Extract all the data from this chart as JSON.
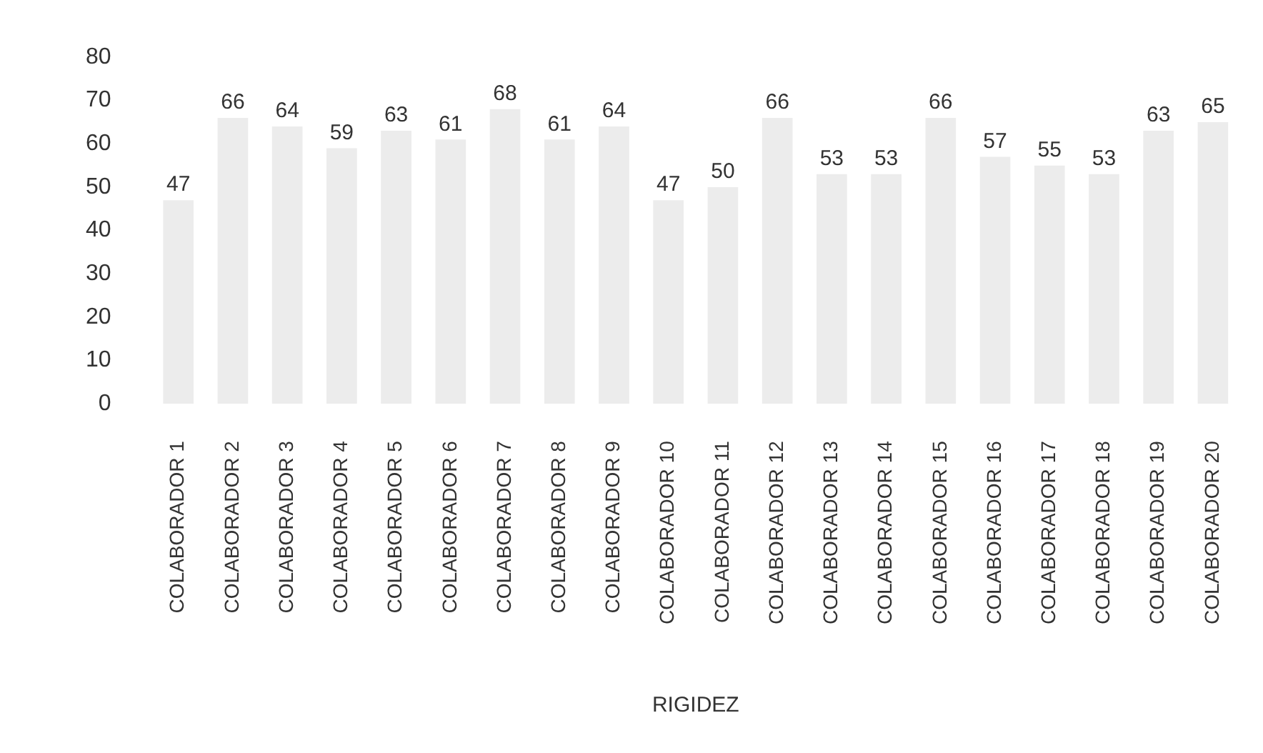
{
  "chart_data": {
    "type": "bar",
    "xlabel": "RIGIDEZ",
    "categories": [
      "COLABORADOR 1",
      "COLABORADOR 2",
      "COLABORADOR 3",
      "COLABORADOR 4",
      "COLABORADOR 5",
      "COLABORADOR 6",
      "COLABORADOR 7",
      "COLABORADOR 8",
      "COLABORADOR 9",
      "COLABORADOR 10",
      "COLABORADOR 11",
      "COLABORADOR 12",
      "COLABORADOR 13",
      "COLABORADOR 14",
      "COLABORADOR 15",
      "COLABORADOR 16",
      "COLABORADOR 17",
      "COLABORADOR 18",
      "COLABORADOR 19",
      "COLABORADOR 20"
    ],
    "values": [
      47,
      66,
      64,
      59,
      63,
      61,
      68,
      61,
      64,
      47,
      50,
      66,
      53,
      53,
      66,
      57,
      55,
      53,
      63,
      65
    ],
    "color": "#ececec",
    "ylim": [
      0,
      80
    ],
    "yticks": [
      0,
      10,
      20,
      30,
      40,
      50,
      60,
      70,
      80
    ],
    "grid": false,
    "legend": false,
    "data_labels": true
  }
}
